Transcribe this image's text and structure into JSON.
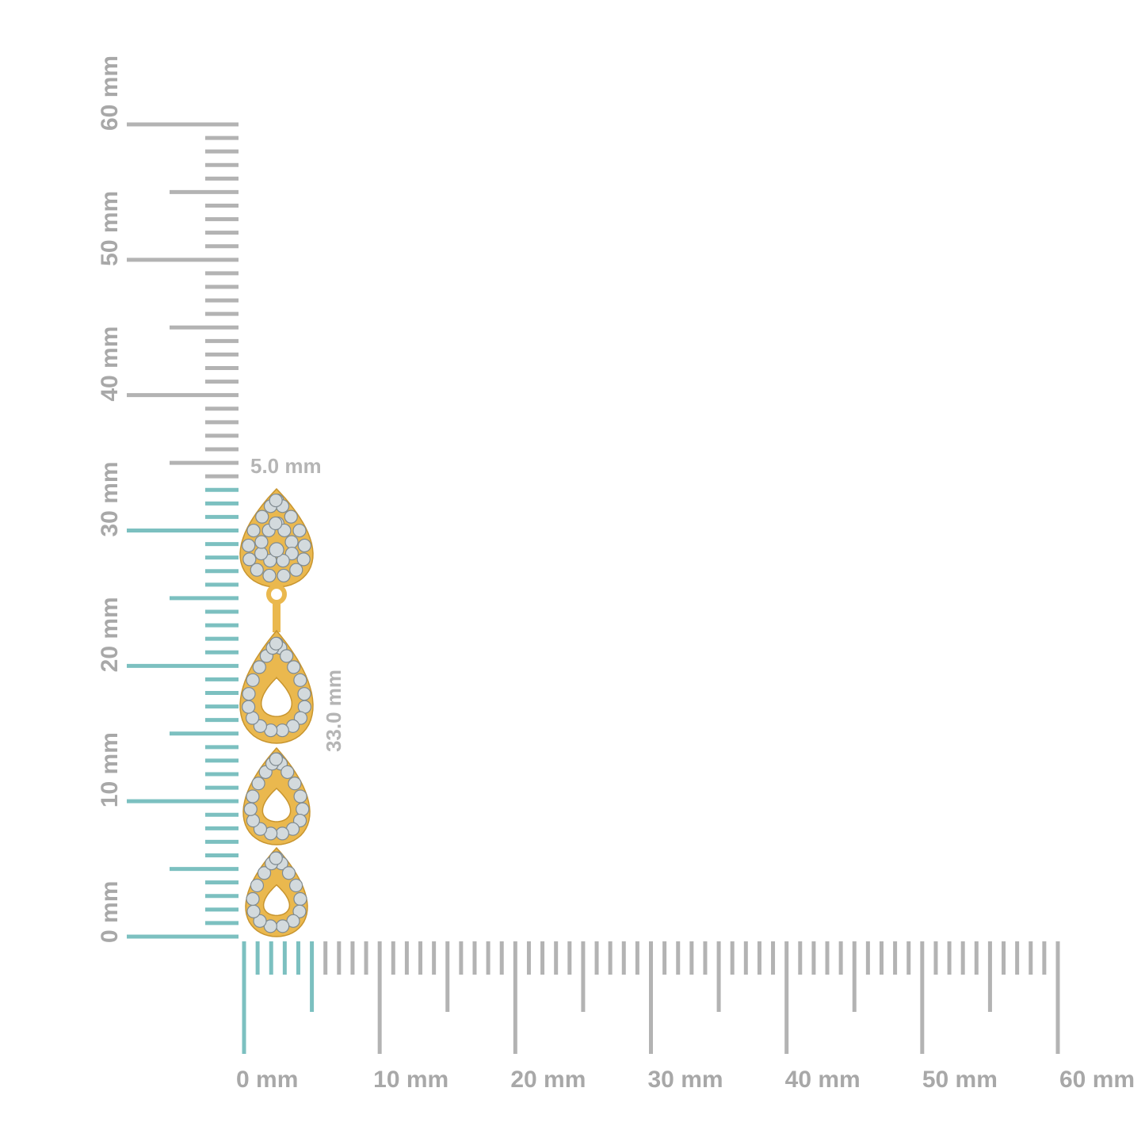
{
  "vertical_ruler": {
    "labels": [
      "0 mm",
      "10 mm",
      "20 mm",
      "30 mm",
      "40 mm",
      "50 mm",
      "60 mm"
    ]
  },
  "horizontal_ruler": {
    "labels": [
      "0 mm",
      "10 mm",
      "20 mm",
      "30 mm",
      "40 mm",
      "50 mm",
      "60 mm"
    ]
  },
  "dimensions": {
    "width": "5.0 mm",
    "length": "33.0 mm"
  }
}
